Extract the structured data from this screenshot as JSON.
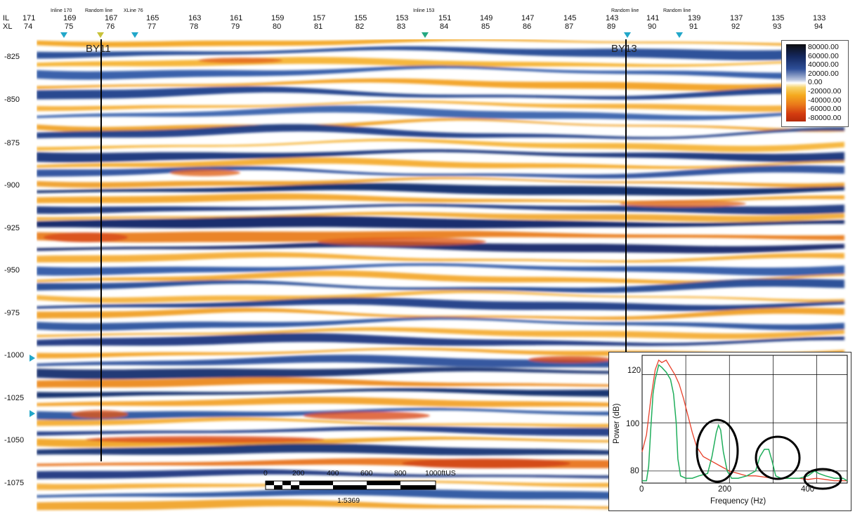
{
  "header": {
    "il_label": "IL",
    "xl_label": "XL",
    "columns": [
      {
        "il": "171",
        "xl": "74"
      },
      {
        "il": "169",
        "xl": "75"
      },
      {
        "il": "167",
        "xl": "76"
      },
      {
        "il": "165",
        "xl": "77"
      },
      {
        "il": "163",
        "xl": "78"
      },
      {
        "il": "161",
        "xl": "79"
      },
      {
        "il": "159",
        "xl": "80"
      },
      {
        "il": "157",
        "xl": "81"
      },
      {
        "il": "155",
        "xl": "82"
      },
      {
        "il": "153",
        "xl": "83"
      },
      {
        "il": "151",
        "xl": "84"
      },
      {
        "il": "149",
        "xl": "85"
      },
      {
        "il": "147",
        "xl": "86"
      },
      {
        "il": "145",
        "xl": "87"
      },
      {
        "il": "143",
        "xl": "89"
      },
      {
        "il": "141",
        "xl": "90"
      },
      {
        "il": "139",
        "xl": "91"
      },
      {
        "il": "137",
        "xl": "92"
      },
      {
        "il": "135",
        "xl": "93"
      },
      {
        "il": "133",
        "xl": "94"
      }
    ],
    "markers": [
      "Inline 170",
      "Random line",
      "XLine 76",
      "Inline 153",
      "Random line",
      "Random line"
    ],
    "marker_colors": {
      "cyan": "#22a7c9",
      "yellow": "#c8c23a",
      "teal": "#25a882"
    }
  },
  "y_axis": {
    "ticks": [
      "-825",
      "-850",
      "-875",
      "-900",
      "-925",
      "-950",
      "-975",
      "-1000",
      "-1025",
      "-1050",
      "-1075"
    ]
  },
  "wells": [
    {
      "label": "BY11"
    },
    {
      "label": "BY13"
    }
  ],
  "legend": {
    "values": [
      "80000.00",
      "60000.00",
      "40000.00",
      "20000.00",
      "0.00",
      "-20000.00",
      "-40000.00",
      "-60000.00",
      "-80000.00"
    ]
  },
  "scale_bar": {
    "ticks": [
      "0",
      "200",
      "400",
      "600",
      "800",
      "1000ftUS"
    ],
    "ratio": "1:5369"
  },
  "spectrum": {
    "ylabel": "Power (dB)",
    "xlabel": "Frequency (Hz)",
    "yticks": [
      "80",
      "100",
      "120"
    ],
    "xticks": [
      "0",
      "200",
      "400"
    ],
    "series_colors": {
      "red": "#e8402a",
      "green": "#1fae5b"
    }
  }
}
